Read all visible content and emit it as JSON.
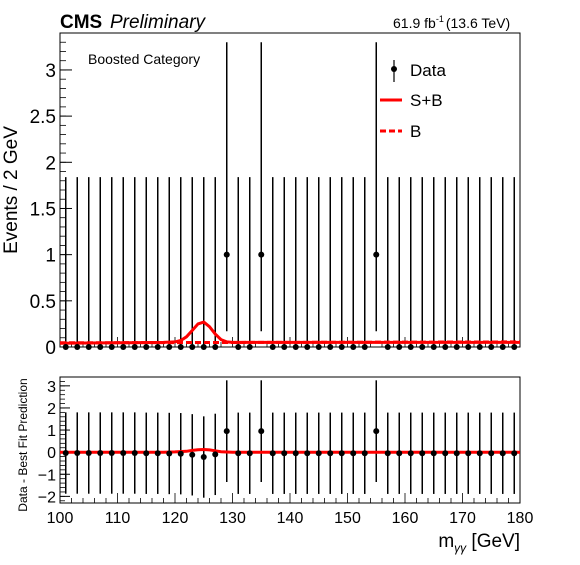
{
  "header": {
    "experiment": "CMS",
    "status": "Preliminary",
    "lumi_value": "61.9 fb",
    "lumi_exp": "-1",
    "energy": "(13.6 TeV)"
  },
  "category_label": "Boosted Category",
  "legend": {
    "data": "Data",
    "splusb": "S+B",
    "b": "B"
  },
  "colors": {
    "fit": "#ff0000",
    "data": "#000000"
  },
  "chart_data": [
    {
      "type": "scatter",
      "panel": "top",
      "ylabel": "Events / 2 GeV",
      "xlim": [
        100,
        180
      ],
      "ylim": [
        0,
        3.4
      ],
      "yticks": [
        0,
        0.5,
        1,
        1.5,
        2,
        2.5,
        3
      ],
      "ytick_labels": [
        "0",
        "0.5",
        "1",
        "1.5",
        "2",
        "2.5",
        "3"
      ],
      "series": [
        {
          "name": "Data",
          "x": [
            101,
            103,
            105,
            107,
            109,
            111,
            113,
            115,
            117,
            119,
            121,
            123,
            125,
            127,
            129,
            131,
            133,
            135,
            137,
            139,
            141,
            143,
            145,
            147,
            149,
            151,
            153,
            155,
            157,
            159,
            161,
            163,
            165,
            167,
            169,
            171,
            173,
            175,
            177,
            179
          ],
          "y": [
            0,
            0,
            0,
            0,
            0,
            0,
            0,
            0,
            0,
            0,
            0,
            0,
            0,
            0,
            1,
            0,
            0,
            1,
            0,
            0,
            0,
            0,
            0,
            0,
            0,
            0,
            0,
            1,
            0,
            0,
            0,
            0,
            0,
            0,
            0,
            0,
            0,
            0,
            0,
            0
          ],
          "err_up": [
            1.84,
            1.84,
            1.84,
            1.84,
            1.84,
            1.84,
            1.84,
            1.84,
            1.84,
            1.84,
            1.84,
            1.84,
            1.84,
            1.84,
            2.3,
            1.84,
            1.84,
            2.3,
            1.84,
            1.84,
            1.84,
            1.84,
            1.84,
            1.84,
            1.84,
            1.84,
            1.84,
            2.3,
            1.84,
            1.84,
            1.84,
            1.84,
            1.84,
            1.84,
            1.84,
            1.84,
            1.84,
            1.84,
            1.84,
            1.84
          ],
          "err_down": [
            0,
            0,
            0,
            0,
            0,
            0,
            0,
            0,
            0,
            0,
            0,
            0,
            0,
            0,
            0.83,
            0,
            0,
            0.83,
            0,
            0,
            0,
            0,
            0,
            0,
            0,
            0,
            0,
            0.83,
            0,
            0,
            0,
            0,
            0,
            0,
            0,
            0,
            0,
            0,
            0,
            0
          ]
        },
        {
          "name": "S+B",
          "x": [
            100,
            110,
            118,
            120,
            121,
            122,
            123,
            124,
            125,
            126,
            127,
            128,
            129,
            130,
            140,
            180
          ],
          "y": [
            0.04,
            0.045,
            0.05,
            0.055,
            0.07,
            0.11,
            0.18,
            0.25,
            0.27,
            0.22,
            0.14,
            0.08,
            0.055,
            0.05,
            0.05,
            0.05
          ]
        },
        {
          "name": "B",
          "x": [
            100,
            180
          ],
          "y": [
            0.045,
            0.055
          ]
        }
      ]
    },
    {
      "type": "scatter",
      "panel": "bottom",
      "xlabel": "m_{γγ} [GeV]",
      "ylabel": "Data - Best Fit Prediction",
      "xlim": [
        100,
        180
      ],
      "ylim": [
        -2.3,
        3.4
      ],
      "xticks": [
        100,
        110,
        120,
        130,
        140,
        150,
        160,
        170,
        180
      ],
      "xtick_labels": [
        "100",
        "110",
        "120",
        "130",
        "140",
        "150",
        "160",
        "170",
        "180"
      ],
      "yticks": [
        -2,
        -1,
        0,
        1,
        2,
        3
      ],
      "ytick_labels": [
        "−2",
        "−1",
        "0",
        "1",
        "2",
        "3"
      ],
      "series": [
        {
          "name": "Data",
          "x": [
            101,
            103,
            105,
            107,
            109,
            111,
            113,
            115,
            117,
            119,
            121,
            123,
            125,
            127,
            129,
            131,
            133,
            135,
            137,
            139,
            141,
            143,
            145,
            147,
            149,
            151,
            153,
            155,
            157,
            159,
            161,
            163,
            165,
            167,
            169,
            171,
            173,
            175,
            177,
            179
          ],
          "y": [
            -0.04,
            -0.04,
            -0.04,
            -0.04,
            -0.04,
            -0.04,
            -0.04,
            -0.05,
            -0.05,
            -0.06,
            -0.07,
            -0.12,
            -0.22,
            -0.1,
            0.95,
            -0.05,
            -0.05,
            0.95,
            -0.05,
            -0.05,
            -0.05,
            -0.05,
            -0.05,
            -0.05,
            -0.05,
            -0.05,
            -0.05,
            0.95,
            -0.05,
            -0.05,
            -0.05,
            -0.05,
            -0.05,
            -0.05,
            -0.05,
            -0.05,
            -0.05,
            -0.05,
            -0.05,
            -0.05
          ],
          "err_up": [
            1.84,
            1.84,
            1.84,
            1.84,
            1.84,
            1.84,
            1.84,
            1.84,
            1.84,
            1.84,
            1.84,
            1.84,
            1.84,
            1.84,
            2.3,
            1.84,
            1.84,
            2.3,
            1.84,
            1.84,
            1.84,
            1.84,
            1.84,
            1.84,
            1.84,
            1.84,
            1.84,
            2.3,
            1.84,
            1.84,
            1.84,
            1.84,
            1.84,
            1.84,
            1.84,
            1.84,
            1.84,
            1.84,
            1.84,
            1.84
          ],
          "err_down": [
            1.84,
            1.84,
            1.84,
            1.84,
            1.84,
            1.84,
            1.84,
            1.84,
            1.84,
            1.84,
            1.84,
            1.84,
            1.84,
            1.84,
            2.3,
            1.84,
            1.84,
            2.3,
            1.84,
            1.84,
            1.84,
            1.84,
            1.84,
            1.84,
            1.84,
            1.84,
            1.84,
            2.3,
            1.84,
            1.84,
            1.84,
            1.84,
            1.84,
            1.84,
            1.84,
            1.84,
            1.84,
            1.84,
            1.84,
            1.84
          ]
        },
        {
          "name": "S+B",
          "x": [
            100,
            118,
            120,
            122,
            123,
            124,
            125,
            126,
            127,
            128,
            130,
            180
          ],
          "y": [
            0,
            0,
            0.01,
            0.04,
            0.08,
            0.11,
            0.12,
            0.1,
            0.06,
            0.02,
            0,
            0
          ]
        }
      ]
    }
  ]
}
